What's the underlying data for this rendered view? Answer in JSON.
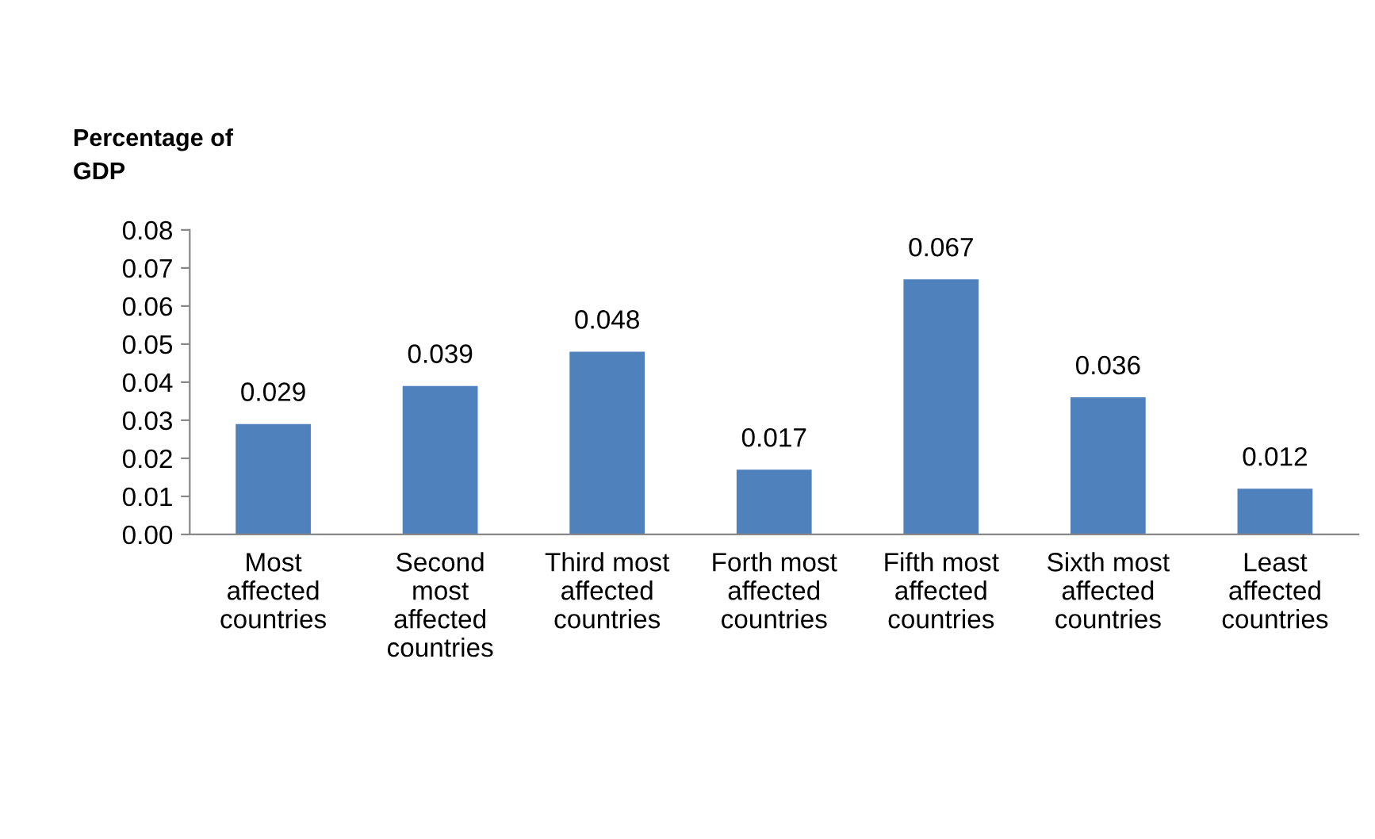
{
  "chart_data": {
    "type": "bar",
    "ylabel": "Percentage of\nGDP",
    "categories": [
      "Most\naffected\ncountries",
      "Second\nmost\naffected\ncountries",
      "Third most\naffected\ncountries",
      "Forth most\naffected\ncountries",
      "Fifth most\naffected\ncountries",
      "Sixth most\naffected\ncountries",
      "Least\naffected\ncountries"
    ],
    "values": [
      0.029,
      0.039,
      0.048,
      0.017,
      0.067,
      0.036,
      0.012
    ],
    "color": "#4f81bd",
    "ylim": [
      0,
      0.08
    ],
    "yticks": [
      {
        "value": 0,
        "label": "0.00"
      },
      {
        "value": 0.01,
        "label": "0.01"
      },
      {
        "value": 0.02,
        "label": "0.02"
      },
      {
        "value": 0.03,
        "label": "0.03"
      },
      {
        "value": 0.04,
        "label": "0.04"
      },
      {
        "value": 0.05,
        "label": "0.05"
      },
      {
        "value": 0.06,
        "label": "0.06"
      },
      {
        "value": 0.07,
        "label": "0.07"
      },
      {
        "value": 0.08,
        "label": "0.08"
      }
    ],
    "data_labels": true,
    "grid": false,
    "legend": false
  }
}
